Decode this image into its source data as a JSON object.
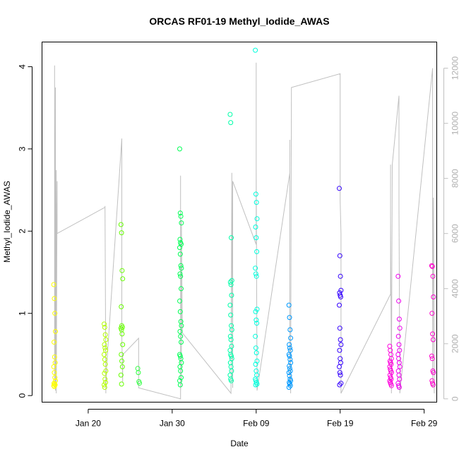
{
  "chart_data": {
    "type": "scatter",
    "title": "ORCAS RF01-19 Methyl_Iodide_AWAS",
    "xlabel": "Date",
    "ylabel": "Methyl_Iodide_AWAS",
    "x_ticks": [
      "Jan 20",
      "Jan 30",
      "Feb 09",
      "Feb 19",
      "Feb 29"
    ],
    "x_tick_days": [
      20,
      30,
      40,
      50,
      60
    ],
    "xlim_days": [
      14.5,
      61.5
    ],
    "ylim": [
      -0.08,
      4.3
    ],
    "y_ticks": [
      0,
      1,
      2,
      3,
      4
    ],
    "y2lim": [
      -120,
      12950
    ],
    "y2_ticks": [
      0,
      2000,
      4000,
      6000,
      8000,
      10000,
      12000
    ],
    "y2_color": "#c0c0c0",
    "altitude_trace": [
      [
        16.0,
        6000
      ],
      [
        16.0,
        12100
      ],
      [
        16.0,
        400
      ],
      [
        16.1,
        11300
      ],
      [
        16.1,
        300
      ],
      [
        16.2,
        8300
      ],
      [
        16.2,
        200
      ],
      [
        16.3,
        7900
      ],
      [
        16.3,
        6000
      ],
      [
        22.0,
        6950
      ],
      [
        22.0,
        7000
      ],
      [
        22.1,
        200
      ],
      [
        22.1,
        300
      ],
      [
        22.2,
        1200
      ],
      [
        24.0,
        9450
      ],
      [
        24.0,
        7400
      ],
      [
        24.0,
        2400
      ],
      [
        24.0,
        2300
      ],
      [
        24.1,
        600
      ],
      [
        24.1,
        1600
      ],
      [
        26.0,
        2200
      ],
      [
        26.0,
        1900
      ],
      [
        26.0,
        800
      ],
      [
        26.0,
        400
      ],
      [
        31.0,
        0
      ],
      [
        31.0,
        8100
      ],
      [
        31.0,
        7300
      ],
      [
        31.0,
        300
      ],
      [
        31.1,
        800
      ],
      [
        31.1,
        6500
      ],
      [
        31.2,
        2400
      ],
      [
        37.0,
        200
      ],
      [
        37.1,
        8200
      ],
      [
        37.1,
        7900
      ],
      [
        37.2,
        400
      ],
      [
        37.2,
        7900
      ],
      [
        40.0,
        5600
      ],
      [
        40.0,
        12200
      ],
      [
        40.0,
        8500
      ],
      [
        40.1,
        400
      ],
      [
        40.1,
        300
      ],
      [
        44.0,
        8200
      ],
      [
        44.0,
        9400
      ],
      [
        44.0,
        800
      ],
      [
        44.1,
        400
      ],
      [
        44.1,
        200
      ],
      [
        44.2,
        11300
      ],
      [
        50.0,
        11800
      ],
      [
        50.0,
        7200
      ],
      [
        50.1,
        6000
      ],
      [
        50.1,
        400
      ],
      [
        50.1,
        200
      ],
      [
        56.0,
        3800
      ],
      [
        56.0,
        8500
      ],
      [
        56.0,
        6600
      ],
      [
        56.1,
        400
      ],
      [
        56.1,
        200
      ],
      [
        56.2,
        8500
      ],
      [
        57.0,
        11000
      ],
      [
        57.0,
        7000
      ],
      [
        57.0,
        6900
      ],
      [
        57.1,
        400
      ],
      [
        57.1,
        200
      ],
      [
        61.0,
        12000
      ],
      [
        61.0,
        8700
      ],
      [
        61.0,
        400
      ],
      [
        61.1,
        7300
      ],
      [
        61.2,
        200
      ]
    ],
    "flights": [
      {
        "color": "#ffff00",
        "x": 16.0,
        "values": [
          1.35,
          1.18,
          1.0,
          0.78,
          0.65,
          0.47,
          0.4,
          0.35,
          0.28,
          0.22,
          0.18,
          0.15,
          0.14,
          0.13,
          0.12,
          0.11
        ]
      },
      {
        "color": "#b3ff00",
        "x": 22.0,
        "values": [
          0.87,
          0.83,
          0.74,
          0.68,
          0.62,
          0.58,
          0.55,
          0.5,
          0.44,
          0.38,
          0.3,
          0.27,
          0.2,
          0.16,
          0.13,
          0.1
        ]
      },
      {
        "color": "#66ff00",
        "x": 24.0,
        "values": [
          2.08,
          1.98,
          1.52,
          1.42,
          1.08,
          0.85,
          0.83,
          0.82,
          0.8,
          0.75,
          0.62,
          0.5,
          0.42,
          0.35,
          0.25,
          0.14
        ]
      },
      {
        "color": "#33ff44",
        "x": 26.0,
        "values": [
          0.33,
          0.28,
          0.17,
          0.15
        ]
      },
      {
        "color": "#00ff55",
        "x": 31.0,
        "values": [
          3.0,
          2.22,
          2.18,
          2.1,
          1.9,
          1.86,
          1.84,
          1.8,
          1.72,
          1.58,
          1.55,
          1.48,
          1.45,
          1.3,
          1.15,
          1.02,
          0.9,
          0.85,
          0.78,
          0.72,
          0.65,
          0.5,
          0.48,
          0.45,
          0.4,
          0.35,
          0.3,
          0.22,
          0.18,
          0.13
        ]
      },
      {
        "color": "#00ffaa",
        "x": 37.0,
        "values": [
          3.42,
          3.32,
          1.92,
          1.4,
          1.38,
          1.35,
          1.22,
          1.1,
          0.98,
          0.85,
          0.8,
          0.72,
          0.68,
          0.6,
          0.55,
          0.5,
          0.48,
          0.45,
          0.4,
          0.35,
          0.3,
          0.25,
          0.2,
          0.18
        ]
      },
      {
        "color": "#00ffdd",
        "x": 40.0,
        "values": [
          4.2,
          2.45,
          2.35,
          2.15,
          2.05,
          1.92,
          1.75,
          1.55,
          1.48,
          1.45,
          1.05,
          1.02,
          0.92,
          0.88,
          0.72,
          0.58,
          0.52,
          0.42,
          0.38,
          0.3,
          0.25,
          0.2,
          0.18,
          0.16,
          0.14,
          0.13
        ]
      },
      {
        "color": "#0099ff",
        "x": 44.0,
        "values": [
          1.1,
          0.95,
          0.8,
          0.7,
          0.62,
          0.58,
          0.55,
          0.5,
          0.48,
          0.44,
          0.4,
          0.36,
          0.33,
          0.3,
          0.28,
          0.24,
          0.2,
          0.18,
          0.16,
          0.14,
          0.12,
          0.1
        ]
      },
      {
        "color": "#3300ff",
        "x": 50.0,
        "values": [
          2.52,
          1.7,
          1.45,
          1.28,
          1.25,
          1.22,
          1.2,
          1.1,
          0.82,
          0.68,
          0.62,
          0.55,
          0.45,
          0.4,
          0.35,
          0.28,
          0.25,
          0.15,
          0.13
        ]
      },
      {
        "color": "#ff00dd",
        "x": 56.0,
        "values": [
          0.6,
          0.55,
          0.5,
          0.45,
          0.42,
          0.4,
          0.38,
          0.35,
          0.32,
          0.3,
          0.28,
          0.25,
          0.22,
          0.2,
          0.18,
          0.16,
          0.14,
          0.12
        ]
      },
      {
        "color": "#ee00ee",
        "x": 57.0,
        "values": [
          1.45,
          1.15,
          0.93,
          0.82,
          0.72,
          0.62,
          0.55,
          0.5,
          0.45,
          0.4,
          0.35,
          0.3,
          0.25,
          0.2,
          0.15,
          0.12,
          0.1
        ]
      },
      {
        "color": "#ff00cc",
        "x": 61.0,
        "values": [
          1.58,
          1.57,
          1.45,
          1.2,
          1.0,
          0.75,
          0.68,
          0.48,
          0.45,
          0.3,
          0.28,
          0.18,
          0.15,
          0.13
        ]
      }
    ]
  }
}
